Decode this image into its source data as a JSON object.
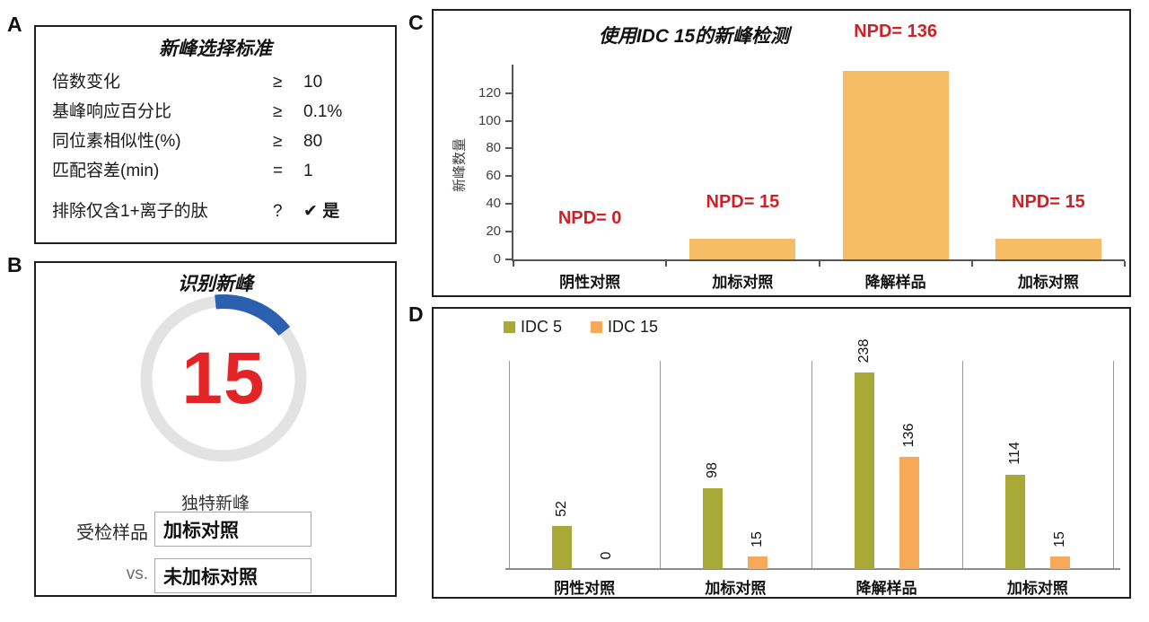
{
  "colors": {
    "red": "#CF2026",
    "ring_blue": "#2B5FB0",
    "ring_gray": "#E3E3E3",
    "count_red": "#E32426",
    "panel_c_bar": "#F7BD66",
    "idc5_green": "#A9A938",
    "idc15_orange": "#F5A959"
  },
  "panel_a": {
    "label": "A",
    "title": "新峰选择标准",
    "rows": [
      {
        "name": "倍数变化",
        "op": "≥",
        "value": "10"
      },
      {
        "name": "基峰响应百分比",
        "op": "≥",
        "value": "0.1%"
      },
      {
        "name": "同位素相似性(%)",
        "op": "≥",
        "value": "80"
      },
      {
        "name": "匹配容差(min)",
        "op": "=",
        "value": "1"
      },
      {
        "name": "排除仅含1+离子的肽",
        "op": "?",
        "value": "✔ 是"
      }
    ]
  },
  "panel_b": {
    "label": "B",
    "title": "识别新峰",
    "count": "15",
    "caption": "独特新峰",
    "sample_label": "受检样品",
    "sample_value": "加标对照",
    "vs_label": "vs.",
    "vs_value": "未加标对照"
  },
  "panel_c": {
    "label": "C"
  },
  "panel_d": {
    "label": "D"
  },
  "chart_data": [
    {
      "panel": "C",
      "type": "bar",
      "title": "使用IDC 15的新峰检测",
      "ylabel": "新峰数量",
      "xlabel": "",
      "categories": [
        "阴性对照",
        "加标对照",
        "降解样品",
        "加标对照"
      ],
      "values": [
        0,
        15,
        136,
        15
      ],
      "annotations": [
        "NPD= 0",
        "NPD= 15",
        "NPD= 136",
        "NPD= 15"
      ],
      "annotation_color": "#CF2026",
      "yticks": [
        0,
        20,
        40,
        60,
        80,
        100,
        120
      ],
      "ylim": [
        0,
        136
      ],
      "grid": false,
      "legend_position": "none",
      "bar_color": "#F7BD66"
    },
    {
      "panel": "D",
      "type": "bar",
      "title": "",
      "categories": [
        "阴性对照",
        "加标对照",
        "降解样品",
        "加标对照"
      ],
      "series": [
        {
          "name": "IDC 5",
          "color": "#A9A938",
          "values": [
            52,
            98,
            238,
            114
          ]
        },
        {
          "name": "IDC 15",
          "color": "#F5A959",
          "values": [
            0,
            15,
            136,
            15
          ]
        }
      ],
      "bar_value_labels_rotated": true,
      "ylim": [
        0,
        259
      ],
      "grid": false,
      "legend_position": "top-left"
    }
  ]
}
